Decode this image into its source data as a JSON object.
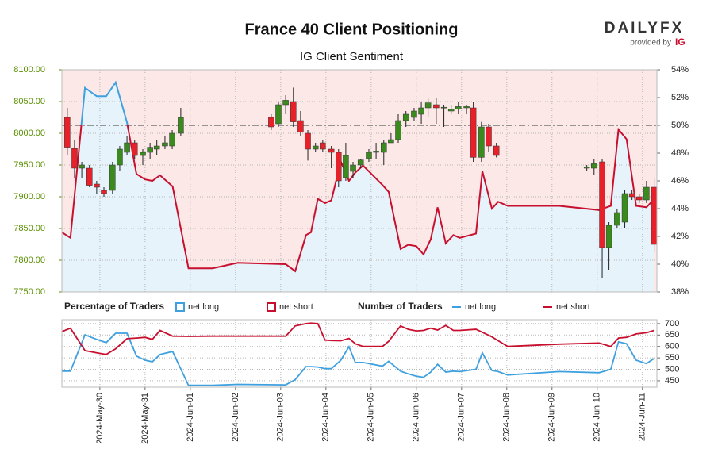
{
  "header": {
    "brand": "DAILYFX",
    "provided_by": "provided by",
    "sponsor": "IG"
  },
  "chart_data": [
    {
      "type": "candlestick",
      "title": "France 40 Client Positioning",
      "subtitle": "IG Client Sentiment",
      "up_color": "#3a8a1e",
      "down_color": "#e8202a",
      "ylim": [
        7750,
        8100
      ],
      "yticks": [
        {
          "value": 7750,
          "label": "7750.00"
        },
        {
          "value": 7800,
          "label": "7800.00"
        },
        {
          "value": 7850,
          "label": "7850.00"
        },
        {
          "value": 7900,
          "label": "7900.00"
        },
        {
          "value": 7950,
          "label": "7950.00"
        },
        {
          "value": 8000,
          "label": "8000.00"
        },
        {
          "value": 8050,
          "label": "8050.00"
        },
        {
          "value": 8100,
          "label": "8100.00"
        }
      ],
      "y2lim": [
        38,
        54
      ],
      "y2ticks": [
        {
          "value": 38,
          "label": "38%"
        },
        {
          "value": 40,
          "label": "40%"
        },
        {
          "value": 42,
          "label": "42%"
        },
        {
          "value": 44,
          "label": "44%"
        },
        {
          "value": 46,
          "label": "46%"
        },
        {
          "value": 48,
          "label": "48%"
        },
        {
          "value": 50,
          "label": "50%"
        },
        {
          "value": 52,
          "label": "52%"
        },
        {
          "value": 54,
          "label": "54%"
        }
      ],
      "threshold": 50,
      "grid": true,
      "candles": [
        {
          "x": -0.72,
          "open": 8025,
          "high": 8040,
          "low": 7965,
          "close": 7978
        },
        {
          "x": -0.56,
          "open": 7976,
          "high": 7990,
          "low": 7930,
          "close": 7945
        },
        {
          "x": -0.4,
          "open": 7945,
          "high": 7955,
          "low": 7930,
          "close": 7950
        },
        {
          "x": -0.23,
          "open": 7945,
          "high": 7950,
          "low": 7915,
          "close": 7918
        },
        {
          "x": -0.07,
          "open": 7920,
          "high": 7925,
          "low": 7905,
          "close": 7915
        },
        {
          "x": 0.09,
          "open": 7910,
          "high": 7915,
          "low": 7900,
          "close": 7905
        },
        {
          "x": 0.28,
          "open": 7910,
          "high": 7955,
          "low": 7905,
          "close": 7950
        },
        {
          "x": 0.44,
          "open": 7950,
          "high": 7980,
          "low": 7940,
          "close": 7975
        },
        {
          "x": 0.6,
          "open": 7970,
          "high": 7995,
          "low": 7965,
          "close": 7985
        },
        {
          "x": 0.77,
          "open": 7985,
          "high": 7990,
          "low": 7960,
          "close": 7965
        },
        {
          "x": 0.95,
          "open": 7965,
          "high": 7975,
          "low": 7950,
          "close": 7970
        },
        {
          "x": 1.11,
          "open": 7970,
          "high": 7985,
          "low": 7960,
          "close": 7978
        },
        {
          "x": 1.26,
          "open": 7975,
          "high": 7990,
          "low": 7965,
          "close": 7980
        },
        {
          "x": 1.44,
          "open": 7980,
          "high": 7995,
          "low": 7975,
          "close": 7985
        },
        {
          "x": 1.6,
          "open": 7980,
          "high": 8005,
          "low": 7975,
          "close": 8000
        },
        {
          "x": 1.79,
          "open": 8000,
          "high": 8040,
          "low": 7995,
          "close": 8025
        },
        {
          "x": 3.79,
          "open": 8025,
          "high": 8030,
          "low": 8005,
          "close": 8010
        },
        {
          "x": 3.95,
          "open": 8015,
          "high": 8050,
          "low": 8010,
          "close": 8045
        },
        {
          "x": 4.11,
          "open": 8045,
          "high": 8060,
          "low": 8030,
          "close": 8052
        },
        {
          "x": 4.28,
          "open": 8050,
          "high": 8072,
          "low": 8010,
          "close": 8018
        },
        {
          "x": 4.44,
          "open": 8020,
          "high": 8035,
          "low": 7995,
          "close": 8002
        },
        {
          "x": 4.6,
          "open": 8000,
          "high": 8005,
          "low": 7957,
          "close": 7975
        },
        {
          "x": 4.77,
          "open": 7975,
          "high": 7985,
          "low": 7970,
          "close": 7980
        },
        {
          "x": 4.93,
          "open": 7985,
          "high": 7990,
          "low": 7970,
          "close": 7975
        },
        {
          "x": 5.12,
          "open": 7975,
          "high": 7980,
          "low": 7945,
          "close": 7970
        },
        {
          "x": 5.28,
          "open": 7970,
          "high": 7975,
          "low": 7915,
          "close": 7925
        },
        {
          "x": 5.44,
          "open": 7930,
          "high": 7985,
          "low": 7925,
          "close": 7965
        },
        {
          "x": 5.6,
          "open": 7940,
          "high": 7955,
          "low": 7930,
          "close": 7950
        },
        {
          "x": 5.77,
          "open": 7950,
          "high": 7960,
          "low": 7945,
          "close": 7958
        },
        {
          "x": 5.95,
          "open": 7960,
          "high": 7975,
          "low": 7955,
          "close": 7970
        },
        {
          "x": 6.11,
          "open": 7970,
          "high": 7985,
          "low": 7960,
          "close": 7972
        },
        {
          "x": 6.28,
          "open": 7970,
          "high": 7990,
          "low": 7950,
          "close": 7985
        },
        {
          "x": 6.44,
          "open": 7985,
          "high": 8000,
          "low": 7985,
          "close": 7990
        },
        {
          "x": 6.6,
          "open": 7990,
          "high": 8030,
          "low": 7985,
          "close": 8020
        },
        {
          "x": 6.77,
          "open": 8020,
          "high": 8035,
          "low": 8010,
          "close": 8030
        },
        {
          "x": 6.95,
          "open": 8025,
          "high": 8040,
          "low": 8020,
          "close": 8035
        },
        {
          "x": 7.11,
          "open": 8030,
          "high": 8050,
          "low": 8015,
          "close": 8040
        },
        {
          "x": 7.26,
          "open": 8040,
          "high": 8055,
          "low": 8025,
          "close": 8048
        },
        {
          "x": 7.44,
          "open": 8045,
          "high": 8055,
          "low": 8015,
          "close": 8040
        },
        {
          "x": 7.61,
          "open": 8040,
          "high": 8045,
          "low": 8010,
          "close": 8041
        },
        {
          "x": 7.77,
          "open": 8035,
          "high": 8045,
          "low": 8030,
          "close": 8038
        },
        {
          "x": 7.93,
          "open": 8038,
          "high": 8050,
          "low": 8030,
          "close": 8042
        },
        {
          "x": 8.11,
          "open": 8040,
          "high": 8045,
          "low": 8030,
          "close": 8042
        },
        {
          "x": 8.26,
          "open": 8040,
          "high": 8050,
          "low": 7955,
          "close": 7962
        },
        {
          "x": 8.44,
          "open": 7962,
          "high": 8018,
          "low": 7955,
          "close": 8010
        },
        {
          "x": 8.6,
          "open": 8010,
          "high": 8015,
          "low": 7970,
          "close": 7980
        },
        {
          "x": 8.77,
          "open": 7980,
          "high": 7985,
          "low": 7962,
          "close": 7965
        },
        {
          "x": 10.77,
          "open": 7945,
          "high": 7950,
          "low": 7940,
          "close": 7947
        },
        {
          "x": 10.93,
          "open": 7945,
          "high": 7960,
          "low": 7935,
          "close": 7952
        },
        {
          "x": 11.11,
          "open": 7955,
          "high": 7960,
          "low": 7772,
          "close": 7820
        },
        {
          "x": 11.26,
          "open": 7820,
          "high": 7860,
          "low": 7785,
          "close": 7855
        },
        {
          "x": 11.44,
          "open": 7855,
          "high": 7880,
          "low": 7850,
          "close": 7875
        },
        {
          "x": 11.61,
          "open": 7860,
          "high": 7910,
          "low": 7850,
          "close": 7905
        },
        {
          "x": 11.77,
          "open": 7905,
          "high": 7910,
          "low": 7895,
          "close": 7900
        },
        {
          "x": 11.93,
          "open": 7900,
          "high": 7905,
          "low": 7890,
          "close": 7895
        },
        {
          "x": 12.09,
          "open": 7895,
          "high": 7925,
          "low": 7890,
          "close": 7915
        },
        {
          "x": 12.26,
          "open": 7915,
          "high": 7930,
          "low": 7812,
          "close": 7825
        }
      ],
      "sentiment": {
        "axis": "y2",
        "above_color": "#3fa0e0",
        "below_color": "#c8102e",
        "x": [
          -0.84,
          -0.65,
          -0.33,
          -0.07,
          0.14,
          0.35,
          0.6,
          0.81,
          1.0,
          1.16,
          1.33,
          1.61,
          1.96,
          2.49,
          3.05,
          4.11,
          4.32,
          4.56,
          4.67,
          4.82,
          4.98,
          5.12,
          5.33,
          5.51,
          5.65,
          5.82,
          6.25,
          6.39,
          6.65,
          6.82,
          7.0,
          7.16,
          7.32,
          7.47,
          7.65,
          7.82,
          7.96,
          8.32,
          8.46,
          8.67,
          8.81,
          9.02,
          10.16,
          11.04,
          11.3,
          11.47,
          11.65,
          11.86,
          12.09,
          12.26
        ],
        "values": [
          42.3,
          41.9,
          52.7,
          52.1,
          52.1,
          53.1,
          50.2,
          46.5,
          46.1,
          46.0,
          46.4,
          45.6,
          39.7,
          39.7,
          40.1,
          40.0,
          39.5,
          42.1,
          42.3,
          44.7,
          44.4,
          44.6,
          47.4,
          46.0,
          46.6,
          47.1,
          45.7,
          45.2,
          41.1,
          41.4,
          41.3,
          40.7,
          41.8,
          44.1,
          41.5,
          42.1,
          41.9,
          42.2,
          46.7,
          44.0,
          44.5,
          44.2,
          44.2,
          43.9,
          44.2,
          49.7,
          49.0,
          44.2,
          44.1,
          44.7
        ]
      },
      "legend_title": "Percentage of Traders",
      "legend": [
        {
          "name": "net long",
          "color": "#3fa0e0",
          "fill": "#e6f3fb"
        },
        {
          "name": "net short",
          "color": "#c8102e",
          "fill": "#fde8e8"
        }
      ]
    },
    {
      "type": "line",
      "legend_title": "Number of Traders",
      "xlim": [
        -0.84,
        12.32
      ],
      "xticks": [
        {
          "value": 0,
          "label": "2024-May-30"
        },
        {
          "value": 1,
          "label": "2024-May-31"
        },
        {
          "value": 2,
          "label": "2024-Jun-01"
        },
        {
          "value": 3,
          "label": "2024-Jun-02"
        },
        {
          "value": 4,
          "label": "2024-Jun-03"
        },
        {
          "value": 5,
          "label": "2024-Jun-04"
        },
        {
          "value": 6,
          "label": "2024-Jun-05"
        },
        {
          "value": 7,
          "label": "2024-Jun-06"
        },
        {
          "value": 8,
          "label": "2024-Jun-07"
        },
        {
          "value": 9,
          "label": "2024-Jun-08"
        },
        {
          "value": 10,
          "label": "2024-Jun-09"
        },
        {
          "value": 11,
          "label": "2024-Jun-10"
        },
        {
          "value": 12,
          "label": "2024-Jun-11"
        }
      ],
      "ylim": [
        422,
        717
      ],
      "yticks": [
        450,
        500,
        550,
        600,
        650,
        700
      ],
      "grid": true,
      "x": [
        -0.84,
        -0.65,
        -0.33,
        -0.07,
        0.14,
        0.35,
        0.6,
        0.81,
        1.0,
        1.16,
        1.33,
        1.61,
        1.96,
        2.49,
        3.05,
        4.11,
        4.32,
        4.56,
        4.67,
        4.82,
        4.98,
        5.12,
        5.33,
        5.51,
        5.65,
        5.82,
        6.25,
        6.39,
        6.65,
        6.82,
        7.0,
        7.16,
        7.32,
        7.47,
        7.65,
        7.82,
        7.96,
        8.32,
        8.46,
        8.67,
        8.81,
        9.02,
        10.16,
        11.04,
        11.3,
        11.47,
        11.65,
        11.86,
        12.09,
        12.26
      ],
      "series": [
        {
          "name": "net long",
          "color": "#3fa0e0",
          "values": [
            492,
            492,
            651,
            631,
            617,
            658,
            658,
            558,
            540,
            533,
            565,
            578,
            430,
            430,
            434,
            432,
            455,
            512,
            512,
            510,
            503,
            503,
            540,
            599,
            530,
            530,
            514,
            535,
            492,
            480,
            470,
            465,
            488,
            522,
            488,
            492,
            490,
            500,
            572,
            495,
            490,
            475,
            490,
            485,
            500,
            620,
            612,
            540,
            525,
            548
          ]
        },
        {
          "name": "net short",
          "color": "#c8102e",
          "values": [
            665,
            680,
            582,
            572,
            565,
            590,
            634,
            637,
            640,
            631,
            670,
            645,
            644,
            645,
            645,
            645,
            690,
            700,
            702,
            700,
            628,
            626,
            625,
            635,
            612,
            600,
            600,
            623,
            690,
            675,
            668,
            670,
            680,
            672,
            692,
            670,
            670,
            675,
            662,
            642,
            625,
            600,
            610,
            615,
            600,
            637,
            640,
            655,
            660,
            670
          ]
        }
      ]
    }
  ]
}
